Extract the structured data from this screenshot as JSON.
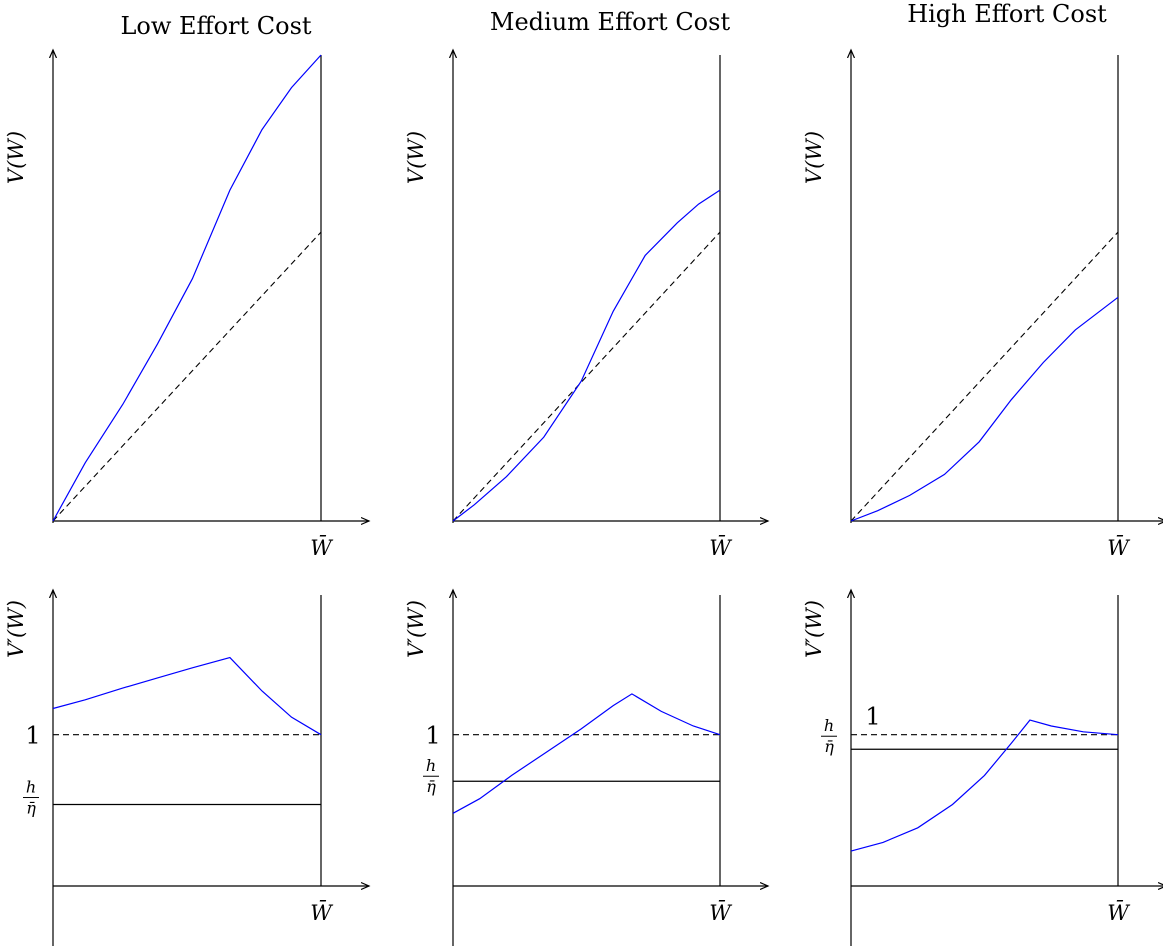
{
  "panels": [
    {
      "title": "Low Effort Cost",
      "top": {
        "ylabel": "V(W)",
        "xlabel": "W̄",
        "ylim": [
          0,
          1
        ],
        "x": [
          0,
          0.12,
          0.26,
          0.39,
          0.52,
          0.66,
          0.78,
          0.89,
          1.0
        ],
        "value_function": [
          0,
          0.125,
          0.25,
          0.38,
          0.52,
          0.71,
          0.84,
          0.93,
          1.0
        ],
        "dashed_45_line": [
          0,
          0.62
        ]
      },
      "bottom": {
        "ylabel": "V′(W)",
        "xlabel": "W̄",
        "ylim": [
          0,
          1
        ],
        "x": [
          0,
          0.12,
          0.26,
          0.39,
          0.52,
          0.66,
          0.78,
          0.89,
          1.0
        ],
        "derivative": [
          0.61,
          0.64,
          0.68,
          0.715,
          0.75,
          0.785,
          0.67,
          0.58,
          0.52
        ],
        "one_level": 0.52,
        "one_label": "1",
        "h_eta_level": 0.28,
        "h_eta_num": "h",
        "h_eta_den": "η̄"
      }
    },
    {
      "title": "Medium Effort Cost",
      "top": {
        "ylabel": "V(W)",
        "xlabel": "W̄",
        "ylim": [
          0,
          1
        ],
        "x": [
          0,
          0.08,
          0.2,
          0.34,
          0.48,
          0.6,
          0.72,
          0.84,
          0.92,
          1.0
        ],
        "value_function": [
          0,
          0.035,
          0.095,
          0.18,
          0.3,
          0.45,
          0.57,
          0.64,
          0.68,
          0.71
        ],
        "dashed_45_line": [
          0,
          0.62
        ]
      },
      "bottom": {
        "ylabel": "V′(W)",
        "xlabel": "W̄",
        "ylim": [
          0,
          1
        ],
        "x": [
          0,
          0.1,
          0.22,
          0.35,
          0.48,
          0.6,
          0.67,
          0.78,
          0.9,
          1.0
        ],
        "derivative": [
          0.25,
          0.3,
          0.38,
          0.46,
          0.54,
          0.62,
          0.66,
          0.6,
          0.55,
          0.52
        ],
        "one_level": 0.52,
        "one_label": "1",
        "h_eta_level": 0.36,
        "h_eta_num": "h",
        "h_eta_den": "η̄"
      }
    },
    {
      "title": "High Effort Cost",
      "top": {
        "ylabel": "V(W)",
        "xlabel": "W̄",
        "ylim": [
          0,
          1
        ],
        "x": [
          0,
          0.1,
          0.22,
          0.35,
          0.48,
          0.6,
          0.72,
          0.84,
          1.0
        ],
        "value_function": [
          0,
          0.022,
          0.055,
          0.1,
          0.17,
          0.26,
          0.34,
          0.41,
          0.48
        ],
        "dashed_45_line": [
          0,
          0.62
        ]
      },
      "bottom": {
        "ylabel": "V′(W)",
        "xlabel": "W̄",
        "ylim": [
          0,
          1
        ],
        "x": [
          0,
          0.12,
          0.25,
          0.38,
          0.5,
          0.6,
          0.67,
          0.75,
          0.87,
          1.0
        ],
        "derivative": [
          0.12,
          0.15,
          0.2,
          0.28,
          0.38,
          0.49,
          0.57,
          0.55,
          0.53,
          0.52
        ],
        "one_level": 0.52,
        "one_label": "1",
        "h_eta_level": 0.47,
        "h_eta_num": "h",
        "h_eta_den": "η̄"
      }
    }
  ],
  "chart_data": [
    {
      "type": "line",
      "title": "Low Effort Cost",
      "xlabel": "W̄",
      "ylabel": "V(W)",
      "series": [
        {
          "values": [
            0,
            0.125,
            0.25,
            0.38,
            0.52,
            0.71,
            0.84,
            0.93,
            1.0
          ]
        }
      ]
    },
    {
      "type": "line",
      "title": "Low Effort Cost",
      "xlabel": "W̄",
      "ylabel": "V′(W)",
      "series": [
        {
          "values": [
            0.61,
            0.64,
            0.68,
            0.715,
            0.75,
            0.785,
            0.67,
            0.58,
            0.52
          ]
        }
      ]
    },
    {
      "type": "line",
      "title": "Medium Effort Cost",
      "xlabel": "W̄",
      "ylabel": "V(W)",
      "series": [
        {
          "values": [
            0,
            0.035,
            0.095,
            0.18,
            0.3,
            0.45,
            0.57,
            0.64,
            0.68,
            0.71
          ]
        }
      ]
    },
    {
      "type": "line",
      "title": "Medium Effort Cost",
      "xlabel": "W̄",
      "ylabel": "V′(W)",
      "series": [
        {
          "values": [
            0.25,
            0.3,
            0.38,
            0.46,
            0.54,
            0.62,
            0.66,
            0.6,
            0.55,
            0.52
          ]
        }
      ]
    },
    {
      "type": "line",
      "title": "High Effort Cost",
      "xlabel": "W̄",
      "ylabel": "V(W)",
      "series": [
        {
          "values": [
            0,
            0.022,
            0.055,
            0.1,
            0.17,
            0.26,
            0.34,
            0.41,
            0.48
          ]
        }
      ]
    },
    {
      "type": "line",
      "title": "High Effort Cost",
      "xlabel": "W̄",
      "ylabel": "V′(W)",
      "series": [
        {
          "values": [
            0.12,
            0.15,
            0.2,
            0.28,
            0.38,
            0.49,
            0.57,
            0.55,
            0.53,
            0.52
          ]
        }
      ]
    }
  ],
  "colors": {
    "curve": "#0000ff",
    "axis": "#000000",
    "dashed": "#000000"
  }
}
